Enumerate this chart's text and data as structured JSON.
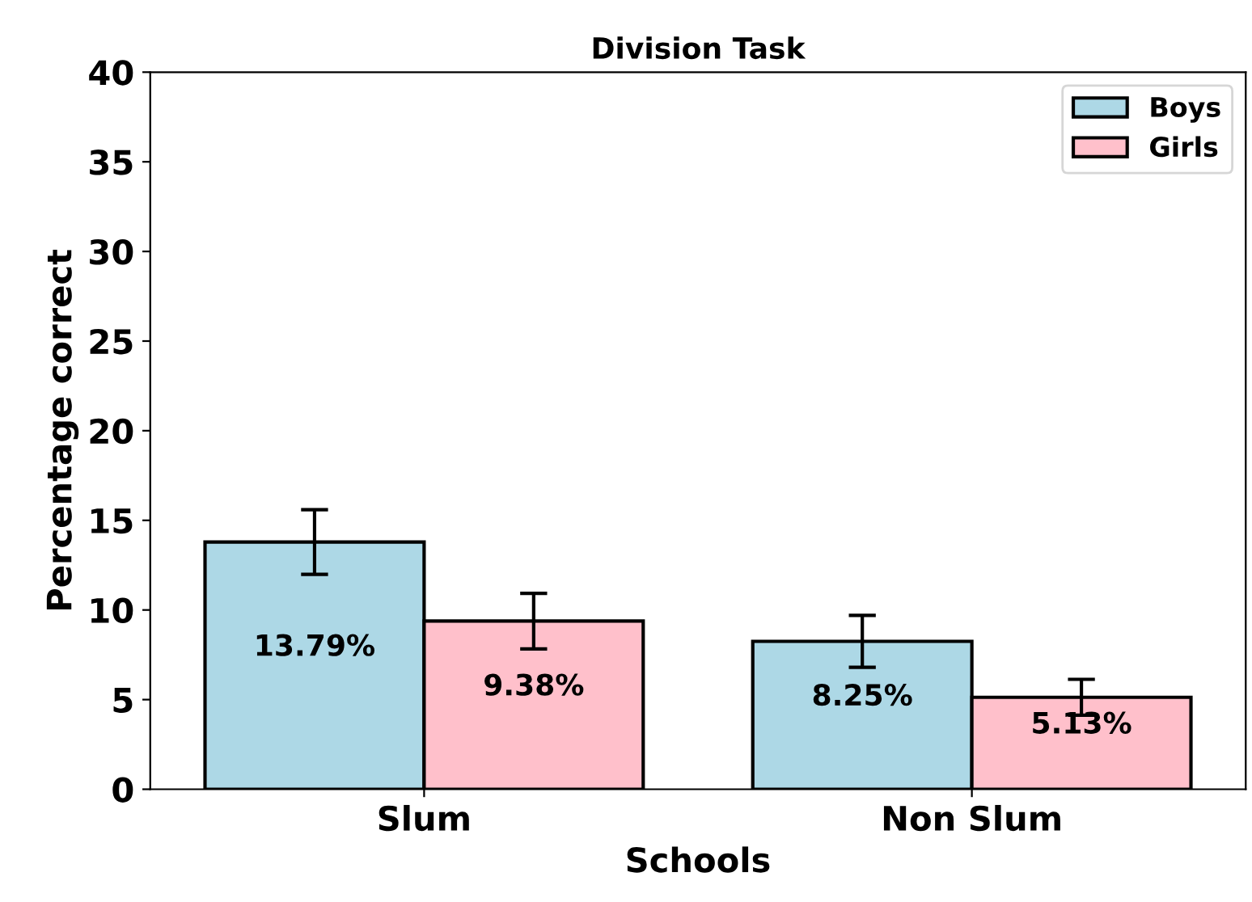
{
  "chart_data": {
    "type": "bar",
    "title": "Division Task",
    "xlabel": "Schools",
    "ylabel": "Percentage correct",
    "categories": [
      "Slum",
      "Non Slum"
    ],
    "series": [
      {
        "name": "Boys",
        "color": "#add8e6",
        "values": [
          13.79,
          8.25
        ],
        "errors": [
          1.8,
          1.45
        ],
        "value_labels": [
          "13.79%",
          "8.25%"
        ]
      },
      {
        "name": "Girls",
        "color": "#ffc0cb",
        "values": [
          9.38,
          5.13
        ],
        "errors": [
          1.55,
          1.0
        ],
        "value_labels": [
          "9.38%",
          "5.13%"
        ]
      }
    ],
    "ylim": [
      0,
      40
    ],
    "yticks": [
      0,
      5,
      10,
      15,
      20,
      25,
      30,
      35,
      40
    ],
    "legend": "top right",
    "grid": false
  }
}
